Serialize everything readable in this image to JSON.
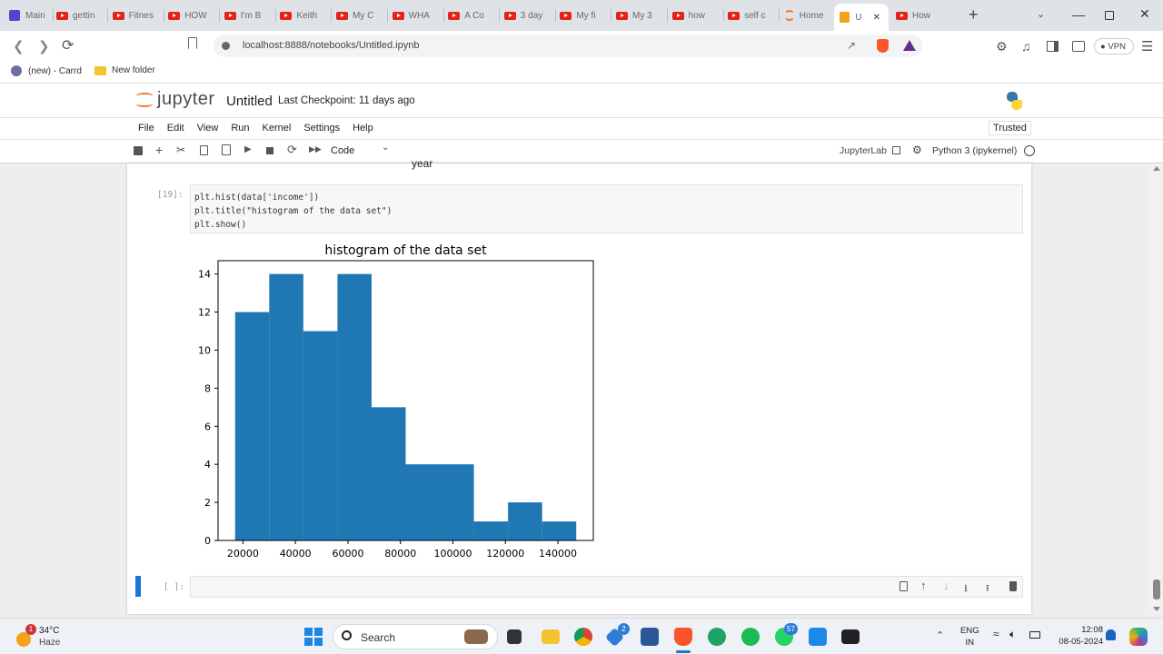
{
  "browser": {
    "tabs": [
      {
        "label": "Main",
        "icon": "app-icon"
      },
      {
        "label": "gettin",
        "icon": "youtube-icon"
      },
      {
        "label": "Fitnes",
        "icon": "youtube-icon"
      },
      {
        "label": "HOW",
        "icon": "youtube-icon"
      },
      {
        "label": "I'm B",
        "icon": "youtube-icon"
      },
      {
        "label": "Keith",
        "icon": "youtube-icon"
      },
      {
        "label": "My C",
        "icon": "youtube-icon"
      },
      {
        "label": "WHA",
        "icon": "youtube-icon"
      },
      {
        "label": "A Co",
        "icon": "youtube-icon"
      },
      {
        "label": "3 day",
        "icon": "youtube-icon"
      },
      {
        "label": "My fi",
        "icon": "youtube-icon"
      },
      {
        "label": "My 3",
        "icon": "youtube-icon"
      },
      {
        "label": "how",
        "icon": "youtube-icon"
      },
      {
        "label": "self c",
        "icon": "youtube-icon"
      },
      {
        "label": "Home",
        "icon": "jupyter-icon"
      },
      {
        "label": "U",
        "icon": "notebook-icon"
      },
      {
        "label": "How",
        "icon": "youtube-icon"
      }
    ],
    "url": "localhost:8888/notebooks/Untitled.ipynb",
    "vpn_label": "VPN",
    "bookmarks": [
      {
        "label": "(new) - Carrd"
      },
      {
        "label": "New folder"
      }
    ]
  },
  "jupyter": {
    "logo_text": "jupyter",
    "notebook_name": "Untitled",
    "checkpoint": "Last Checkpoint: 11 days ago",
    "trusted_label": "Trusted",
    "menu": [
      "File",
      "Edit",
      "View",
      "Run",
      "Kernel",
      "Settings",
      "Help"
    ],
    "cell_type": "Code",
    "jupyterlab_label": "JupyterLab",
    "kernel_label": "Python 3 (ipykernel)"
  },
  "cells": {
    "prev_output_fragment": "year",
    "code_cell": {
      "prompt": "[19]:",
      "lines": [
        "plt.hist(data['income'])",
        "plt.title(\"histogram of the data set\")",
        "plt.show()"
      ]
    },
    "empty_cell_prompt": "[ ]:"
  },
  "chart_data": {
    "type": "bar",
    "title": "histogram of the data set",
    "xlabel": "",
    "ylabel": "",
    "bin_edges": [
      17000,
      30000,
      43000,
      56000,
      69000,
      82000,
      95000,
      108000,
      121000,
      134000,
      147000
    ],
    "values": [
      12,
      14,
      11,
      14,
      7,
      4,
      4,
      1,
      2,
      1
    ],
    "xticks": [
      20000,
      40000,
      60000,
      80000,
      100000,
      120000,
      140000
    ],
    "yticks": [
      0,
      2,
      4,
      6,
      8,
      10,
      12,
      14
    ],
    "xlim": [
      10500,
      153500
    ],
    "ylim": [
      0,
      14.7
    ],
    "bar_color": "#1f77b4"
  },
  "taskbar": {
    "weather_temp": "34°C",
    "weather_desc": "Haze",
    "weather_badge": "1",
    "search_label": "Search",
    "lang_top": "ENG",
    "lang_bottom": "IN",
    "time": "12:08",
    "date": "08-05-2024",
    "badge_edge": "2",
    "badge_whatsapp": "57"
  }
}
